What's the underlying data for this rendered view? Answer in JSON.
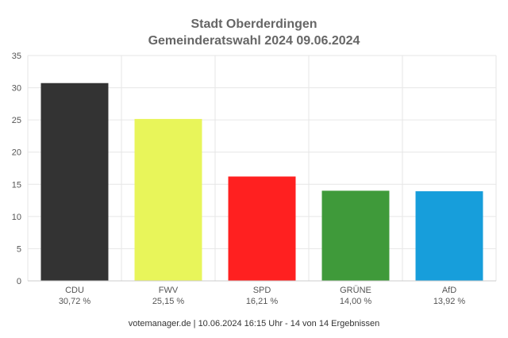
{
  "chart_data": {
    "type": "bar",
    "title": "Stadt Oberderdingen",
    "subtitle": "Gemeinderatswahl 2024 09.06.2024",
    "categories": [
      "CDU",
      "FWV",
      "SPD",
      "GRÜNE",
      "AfD"
    ],
    "value_labels": [
      "30,72 %",
      "25,15 %",
      "16,21 %",
      "14,00 %",
      "13,92 %"
    ],
    "values": [
      30.72,
      25.15,
      16.21,
      14.0,
      13.92
    ],
    "colors": [
      "#333333",
      "#e8f55a",
      "#ff2020",
      "#3f9a3a",
      "#179edb"
    ],
    "ylim": [
      0,
      35
    ],
    "yticks": [
      "0",
      "5",
      "10",
      "15",
      "20",
      "25",
      "30",
      "35"
    ],
    "xlabel": "",
    "ylabel": "",
    "grid": true,
    "footer": "votemanager.de | 10.06.2024 16:15 Uhr - 14 von 14 Ergebnissen"
  }
}
